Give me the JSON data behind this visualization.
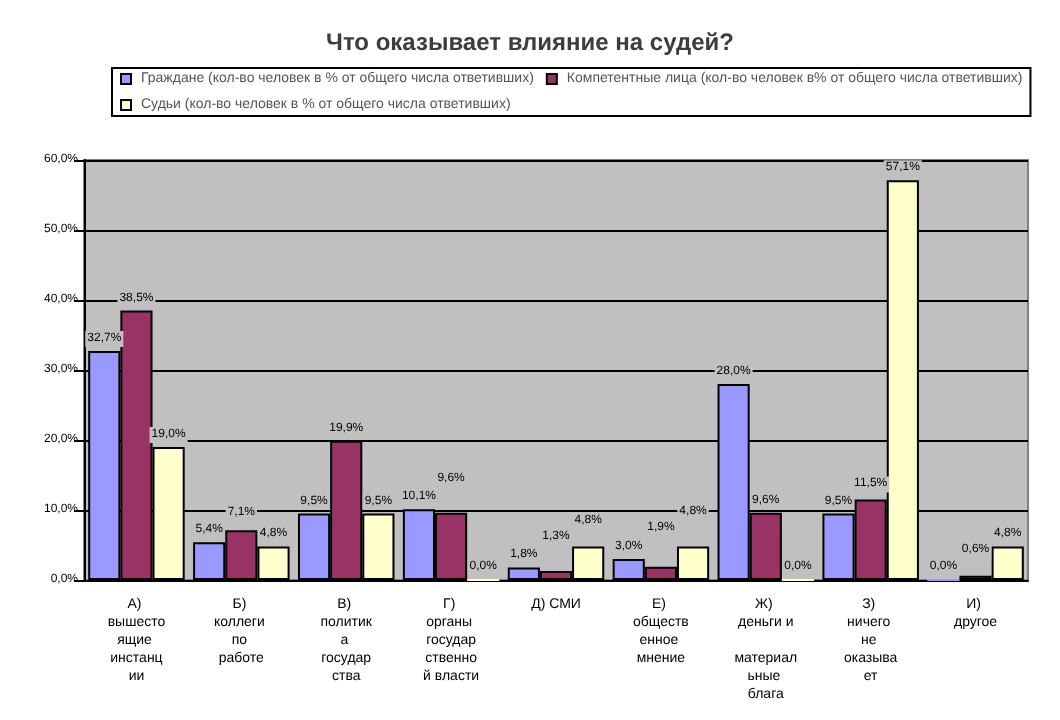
{
  "chart_data": {
    "type": "bar",
    "title": "Что оказывает влияние на судей?",
    "categories": [
      "А) вышестоящие инстанции",
      "Б) коллеги по работе",
      "В) политика государства",
      "Г) органы государственной власти",
      "Д) СМИ",
      "Е) общественное мнение",
      "Ж) деньги и материальные блага",
      "З) ничего не оказывает",
      "И) другое"
    ],
    "series": [
      {
        "name": "Граждане (кол-во человек в % от общего числа ответивших)",
        "color": "#9999ff",
        "values": [
          32.7,
          5.4,
          9.5,
          10.1,
          1.8,
          3.0,
          28.0,
          9.5,
          0.0
        ],
        "value_labels": [
          "32,7%",
          "5,4%",
          "9,5%",
          "10,1%",
          "1,8%",
          "3,0%",
          "28,0%",
          "9,5%",
          "0,0%"
        ]
      },
      {
        "name": "Компетентные лица (кол-во человек в% от общего числа ответивших)",
        "color": "#993366",
        "values": [
          38.5,
          7.1,
          19.9,
          9.6,
          1.3,
          1.9,
          9.6,
          11.5,
          0.6
        ],
        "value_labels": [
          "38,5%",
          "7,1%",
          "19,9%",
          "9,6%",
          "1,3%",
          "1,9%",
          "9,6%",
          "11,5%",
          "0,6%"
        ]
      },
      {
        "name": "Судьи (кол-во человек в % от общего числа ответивших)",
        "color": "#ffffcc",
        "values": [
          19.0,
          4.8,
          9.5,
          0.0,
          4.8,
          4.8,
          0.0,
          57.1,
          4.8
        ],
        "value_labels": [
          "19,0%",
          "4,8%",
          "9,5%",
          "0,0%",
          "4,8%",
          "4,8%",
          "0,0%",
          "57,1%",
          "4,8%"
        ]
      }
    ],
    "ylim": [
      0,
      60
    ],
    "yticks": [
      {
        "value": 0,
        "label": "0,0%"
      },
      {
        "value": 10,
        "label": "10,0%"
      },
      {
        "value": 20,
        "label": "20,0%"
      },
      {
        "value": 30,
        "label": "30,0%"
      },
      {
        "value": 40,
        "label": "40,0%"
      },
      {
        "value": 50,
        "label": "50,0%"
      },
      {
        "value": 60,
        "label": "60,0%"
      }
    ],
    "grid": "y",
    "legend": "top"
  }
}
